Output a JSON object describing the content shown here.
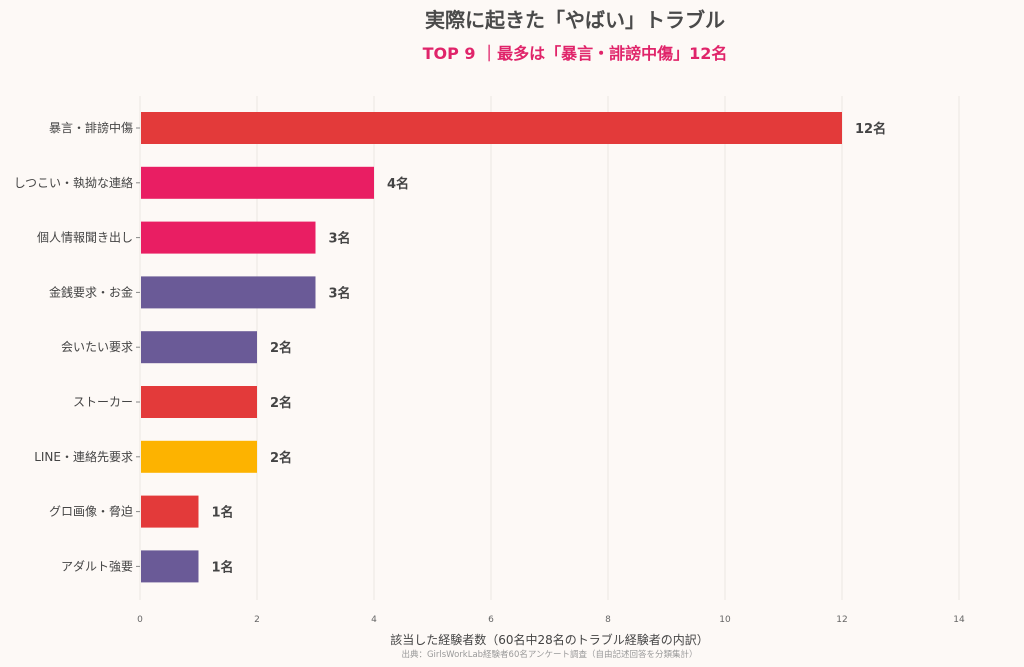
{
  "chart_data": {
    "type": "bar",
    "orientation": "horizontal",
    "title": "実際に起きた「やばい」トラブル",
    "subtitle": "TOP 9 ｜最多は「暴言・誹謗中傷」12名",
    "xlabel": "該当した経験者数（60名中28名のトラブル経験者の内訳）",
    "source": "出典：GirlsWorkLab経験者60名アンケート調査（自由記述回答を分類集計）",
    "categories": [
      "暴言・誹謗中傷",
      "しつこい・執拗な連絡",
      "個人情報聞き出し",
      "金銭要求・お金",
      "会いたい要求",
      "ストーカー",
      "LINE・連絡先要求",
      "グロ画像・脅迫",
      "アダルト強要"
    ],
    "values": [
      12,
      4,
      3,
      3,
      2,
      2,
      2,
      1,
      1
    ],
    "value_labels": [
      "12名",
      "4名",
      "3名",
      "3名",
      "2名",
      "2名",
      "2名",
      "1名",
      "1名"
    ],
    "colors": [
      "#e33a3a",
      "#e91e63",
      "#e91e63",
      "#6a5a97",
      "#6a5a97",
      "#e33a3a",
      "#fdb300",
      "#e33a3a",
      "#6a5a97"
    ],
    "xlim": [
      0,
      14
    ],
    "xticks": [
      0,
      2,
      4,
      6,
      8,
      10,
      12,
      14
    ],
    "grid": "vertical"
  }
}
